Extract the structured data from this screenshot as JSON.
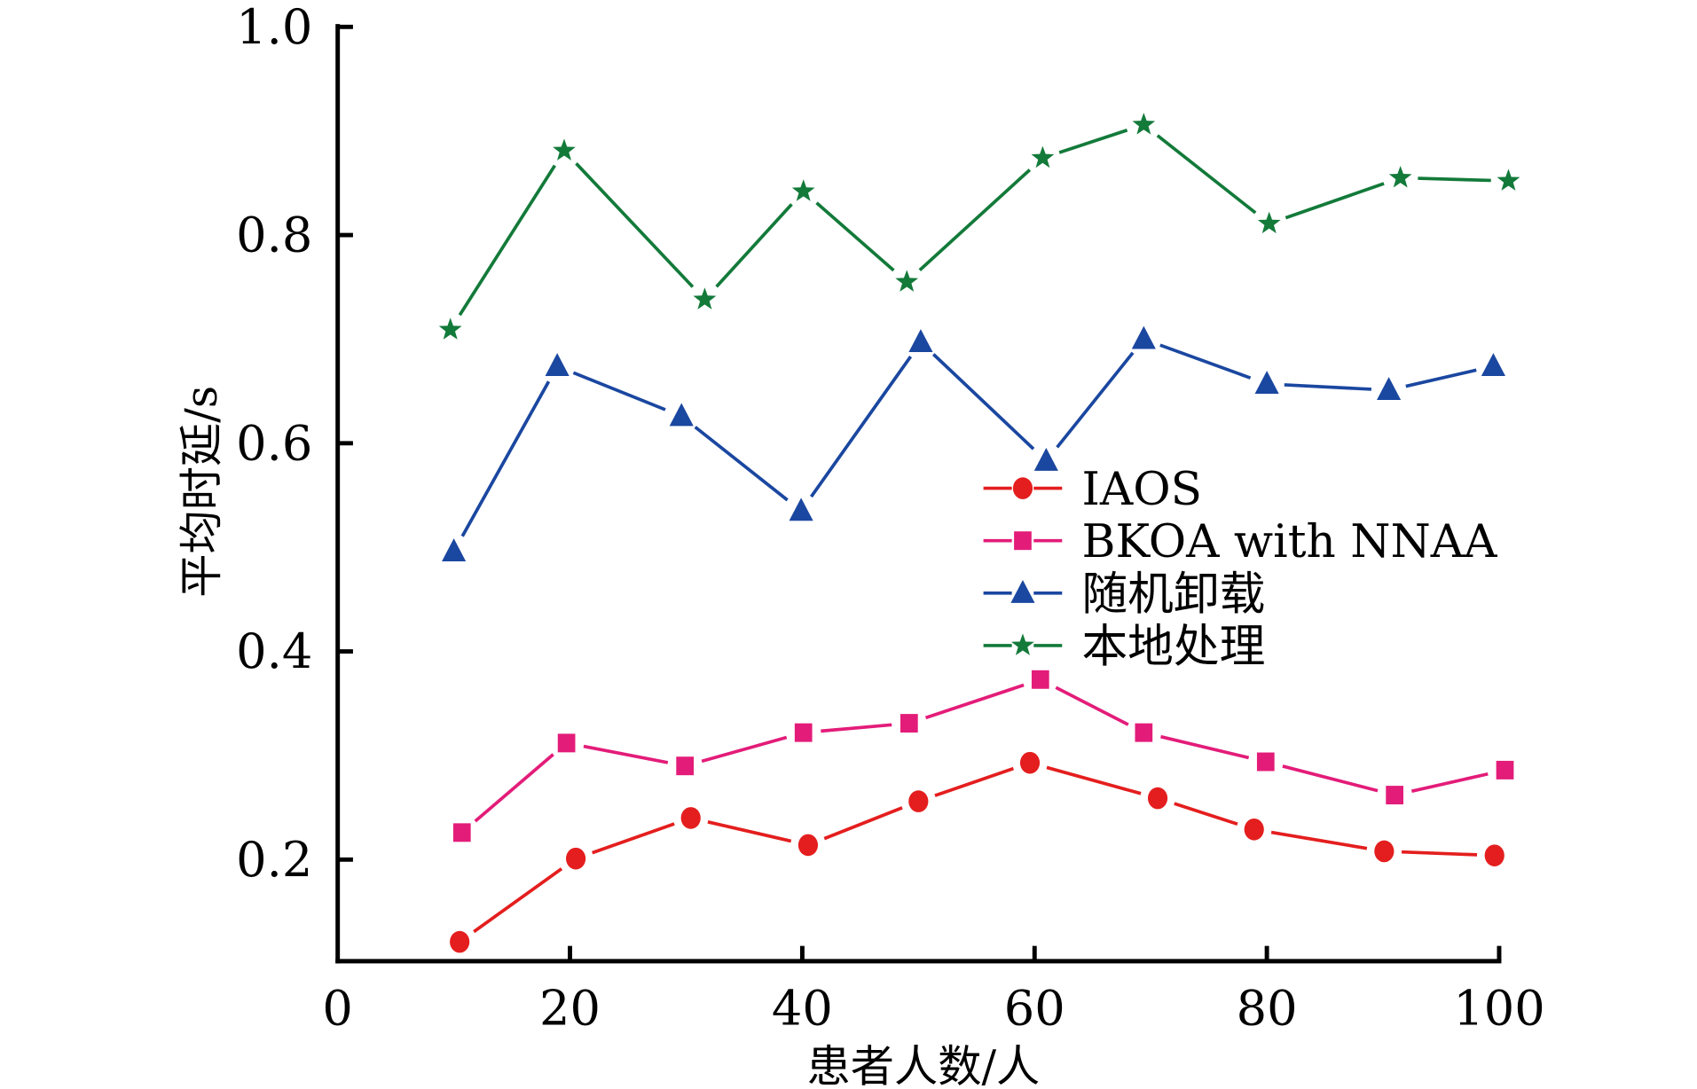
{
  "chart_data": {
    "type": "line",
    "title": "",
    "xlabel": "患者人数/人",
    "ylabel": "平均时延/s",
    "xlim": [
      0,
      100
    ],
    "ylim": [
      0.1,
      1.0
    ],
    "xticks": [
      0,
      20,
      40,
      60,
      80,
      100
    ],
    "xtick_labels": [
      "0",
      "20",
      "40",
      "60",
      "80",
      "100"
    ],
    "yticks": [
      0.2,
      0.4,
      0.6,
      0.8,
      1.0
    ],
    "ytick_labels": [
      "0.2",
      "0.4",
      "0.6",
      "0.8",
      "1.0"
    ],
    "grid": false,
    "legend_position": "center-right",
    "series": [
      {
        "name": "IAOS",
        "color": "#e41e1e",
        "marker": "circle",
        "x": [
          10.5,
          20.5,
          30.4,
          40.5,
          50,
          59.6,
          70.6,
          78.9,
          90.1,
          99.6
        ],
        "values": [
          0.121,
          0.201,
          0.24,
          0.214,
          0.256,
          0.293,
          0.259,
          0.229,
          0.208,
          0.204
        ]
      },
      {
        "name": "BKOA with NNAA",
        "color": "#e31c79",
        "marker": "square",
        "x": [
          10.7,
          19.7,
          29.9,
          40.1,
          49.2,
          60.5,
          69.4,
          79.9,
          91,
          100.5
        ],
        "values": [
          0.226,
          0.312,
          0.29,
          0.322,
          0.331,
          0.373,
          0.322,
          0.294,
          0.262,
          0.286
        ]
      },
      {
        "name": "随机卸载",
        "color": "#1a47a0",
        "marker": "triangle",
        "x": [
          10,
          18.9,
          29.6,
          39.9,
          50.2,
          61,
          69.4,
          80,
          90.5,
          99.5
        ],
        "values": [
          0.496,
          0.674,
          0.626,
          0.535,
          0.697,
          0.583,
          0.7,
          0.657,
          0.651,
          0.674
        ]
      },
      {
        "name": "本地处理",
        "color": "#137a3a",
        "marker": "star",
        "x": [
          9.7,
          19.5,
          31.6,
          40.1,
          49,
          60.7,
          69.4,
          80.2,
          91.5,
          100.8
        ],
        "values": [
          0.709,
          0.881,
          0.738,
          0.842,
          0.755,
          0.874,
          0.906,
          0.811,
          0.855,
          0.852
        ]
      }
    ]
  }
}
